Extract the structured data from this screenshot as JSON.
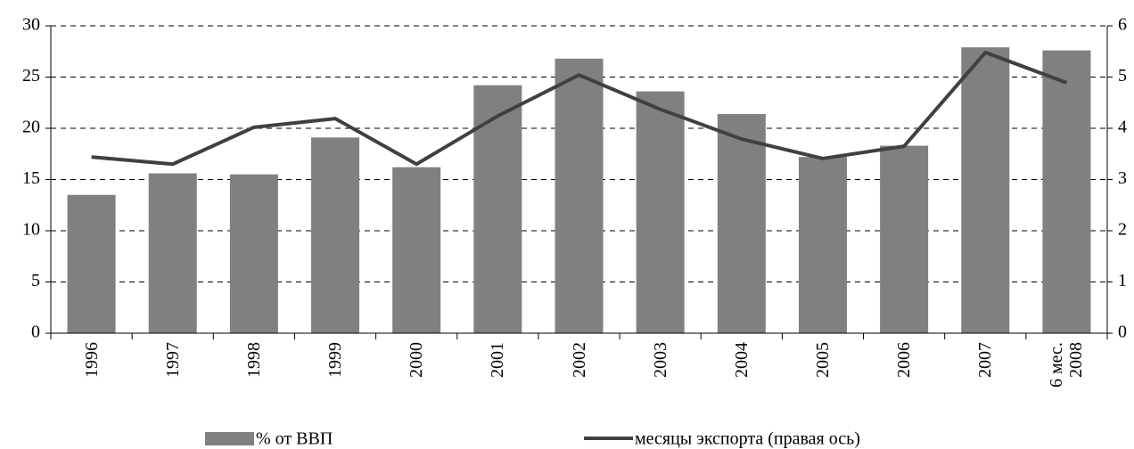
{
  "chart_data": {
    "type": "bar-line",
    "categories": [
      "1996",
      "1997",
      "1998",
      "1999",
      "2000",
      "2001",
      "2002",
      "2003",
      "2004",
      "2005",
      "2006",
      "2007",
      "6 мес. 2008"
    ],
    "series": [
      {
        "name": "% от ВВП",
        "type": "bar",
        "color": "#808080",
        "values": [
          13.5,
          15.6,
          15.5,
          19.1,
          16.2,
          24.2,
          26.8,
          23.6,
          21.4,
          17.2,
          18.3,
          27.9,
          27.6
        ]
      },
      {
        "name": "месяцы экспорта (правая ось)",
        "type": "line",
        "axis": "y2",
        "color": "#404040",
        "values": [
          3.44,
          3.3,
          4.02,
          4.19,
          3.3,
          4.24,
          5.04,
          4.37,
          3.79,
          3.41,
          3.65,
          5.48,
          4.89
        ]
      }
    ],
    "ylim": [
      0,
      30
    ],
    "yticks": [
      0,
      5,
      10,
      15,
      20,
      25,
      30
    ],
    "y2lim": [
      0,
      6
    ],
    "y2ticks": [
      0,
      1,
      2,
      3,
      4,
      5,
      6
    ],
    "grid": true
  }
}
